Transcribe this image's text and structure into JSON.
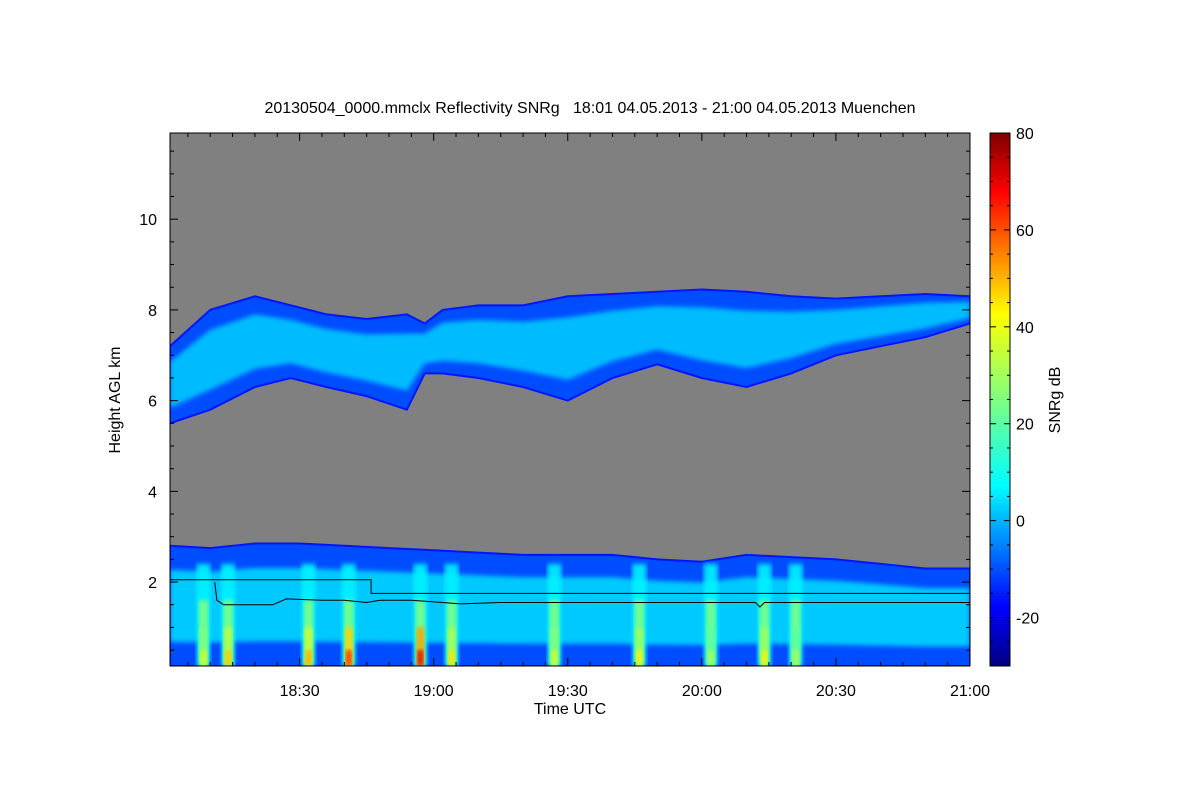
{
  "chart_data": {
    "type": "heatmap",
    "title": "20130504_0000.mmclx Reflectivity SNRg   18:01 04.05.2013 - 21:00 04.05.2013 Muenchen",
    "xlabel": "Time UTC",
    "ylabel": "Height AGL km",
    "colorbar_label": "SNRg dB",
    "x_unit": "minutes since 18:00 UTC",
    "xlim": [
      1,
      180
    ],
    "ylim": [
      0.15,
      11.9
    ],
    "x_ticks": [
      {
        "value": 30,
        "label": "18:30"
      },
      {
        "value": 60,
        "label": "19:00"
      },
      {
        "value": 90,
        "label": "19:30"
      },
      {
        "value": 120,
        "label": "20:00"
      },
      {
        "value": 150,
        "label": "20:30"
      },
      {
        "value": 180,
        "label": "21:00"
      }
    ],
    "y_ticks": [
      {
        "value": 2,
        "label": "2"
      },
      {
        "value": 4,
        "label": "4"
      },
      {
        "value": 6,
        "label": "6"
      },
      {
        "value": 8,
        "label": "8"
      },
      {
        "value": 10,
        "label": "10"
      }
    ],
    "colorbar": {
      "range": [
        -30,
        80
      ],
      "ticks": [
        {
          "value": -20,
          "label": "-20"
        },
        {
          "value": 0,
          "label": "0"
        },
        {
          "value": 20,
          "label": "20"
        },
        {
          "value": 40,
          "label": "40"
        },
        {
          "value": 60,
          "label": "60"
        },
        {
          "value": 80,
          "label": "80"
        }
      ],
      "colormap": "jet"
    },
    "background_color": "#808080",
    "layers": [
      {
        "name": "upper cloud layer",
        "time": [
          1,
          10,
          20,
          28,
          36,
          45,
          54,
          58,
          62,
          70,
          80,
          90,
          100,
          110,
          120,
          130,
          140,
          150,
          160,
          170,
          180
        ],
        "top_km": [
          7.2,
          8.0,
          8.3,
          8.1,
          7.9,
          7.8,
          7.9,
          7.7,
          8.0,
          8.1,
          8.1,
          8.3,
          8.35,
          8.4,
          8.45,
          8.4,
          8.3,
          8.25,
          8.3,
          8.35,
          8.3
        ],
        "base_km": [
          5.5,
          5.8,
          6.3,
          6.5,
          6.3,
          6.1,
          5.8,
          6.6,
          6.6,
          6.5,
          6.3,
          6.0,
          6.5,
          6.8,
          6.5,
          6.3,
          6.6,
          7.0,
          7.2,
          7.4,
          7.7
        ],
        "typical_snr_db": 8
      },
      {
        "name": "lower precipitation layer",
        "time": [
          1,
          10,
          20,
          30,
          40,
          50,
          60,
          70,
          80,
          90,
          100,
          110,
          120,
          130,
          140,
          150,
          160,
          170,
          180
        ],
        "top_km": [
          2.8,
          2.75,
          2.85,
          2.85,
          2.8,
          2.75,
          2.7,
          2.65,
          2.6,
          2.6,
          2.6,
          2.5,
          2.45,
          2.6,
          2.55,
          2.5,
          2.4,
          2.3,
          2.3
        ],
        "base_km": [
          0.15,
          0.15,
          0.15,
          0.15,
          0.15,
          0.15,
          0.15,
          0.15,
          0.15,
          0.15,
          0.15,
          0.15,
          0.15,
          0.15,
          0.15,
          0.15,
          0.15,
          0.15,
          0.15
        ],
        "typical_snr_db": 10
      }
    ],
    "fall_streaks": [
      {
        "time": 8.5,
        "max_snr_db": 35
      },
      {
        "time": 14,
        "max_snr_db": 45
      },
      {
        "time": 32,
        "max_snr_db": 48
      },
      {
        "time": 41,
        "max_snr_db": 62
      },
      {
        "time": 57,
        "max_snr_db": 70
      },
      {
        "time": 64,
        "max_snr_db": 42
      },
      {
        "time": 87,
        "max_snr_db": 35
      },
      {
        "time": 106,
        "max_snr_db": 40
      },
      {
        "time": 122,
        "max_snr_db": 30
      },
      {
        "time": 134,
        "max_snr_db": 40
      },
      {
        "time": 141,
        "max_snr_db": 30
      }
    ],
    "overlay_lines": [
      {
        "name": "threshold line",
        "time": [
          1,
          46,
          46,
          180
        ],
        "height_km": [
          2.05,
          2.05,
          1.75,
          1.75
        ]
      },
      {
        "name": "melting layer line",
        "time": [
          11,
          11.5,
          13,
          17,
          24,
          27,
          35,
          40,
          45,
          48,
          55,
          62,
          66,
          75,
          85,
          100,
          120,
          132,
          133,
          134,
          150,
          180
        ],
        "height_km": [
          2.0,
          1.6,
          1.5,
          1.5,
          1.5,
          1.63,
          1.6,
          1.6,
          1.55,
          1.6,
          1.6,
          1.55,
          1.52,
          1.55,
          1.55,
          1.55,
          1.55,
          1.55,
          1.45,
          1.55,
          1.55,
          1.55
        ]
      }
    ]
  }
}
